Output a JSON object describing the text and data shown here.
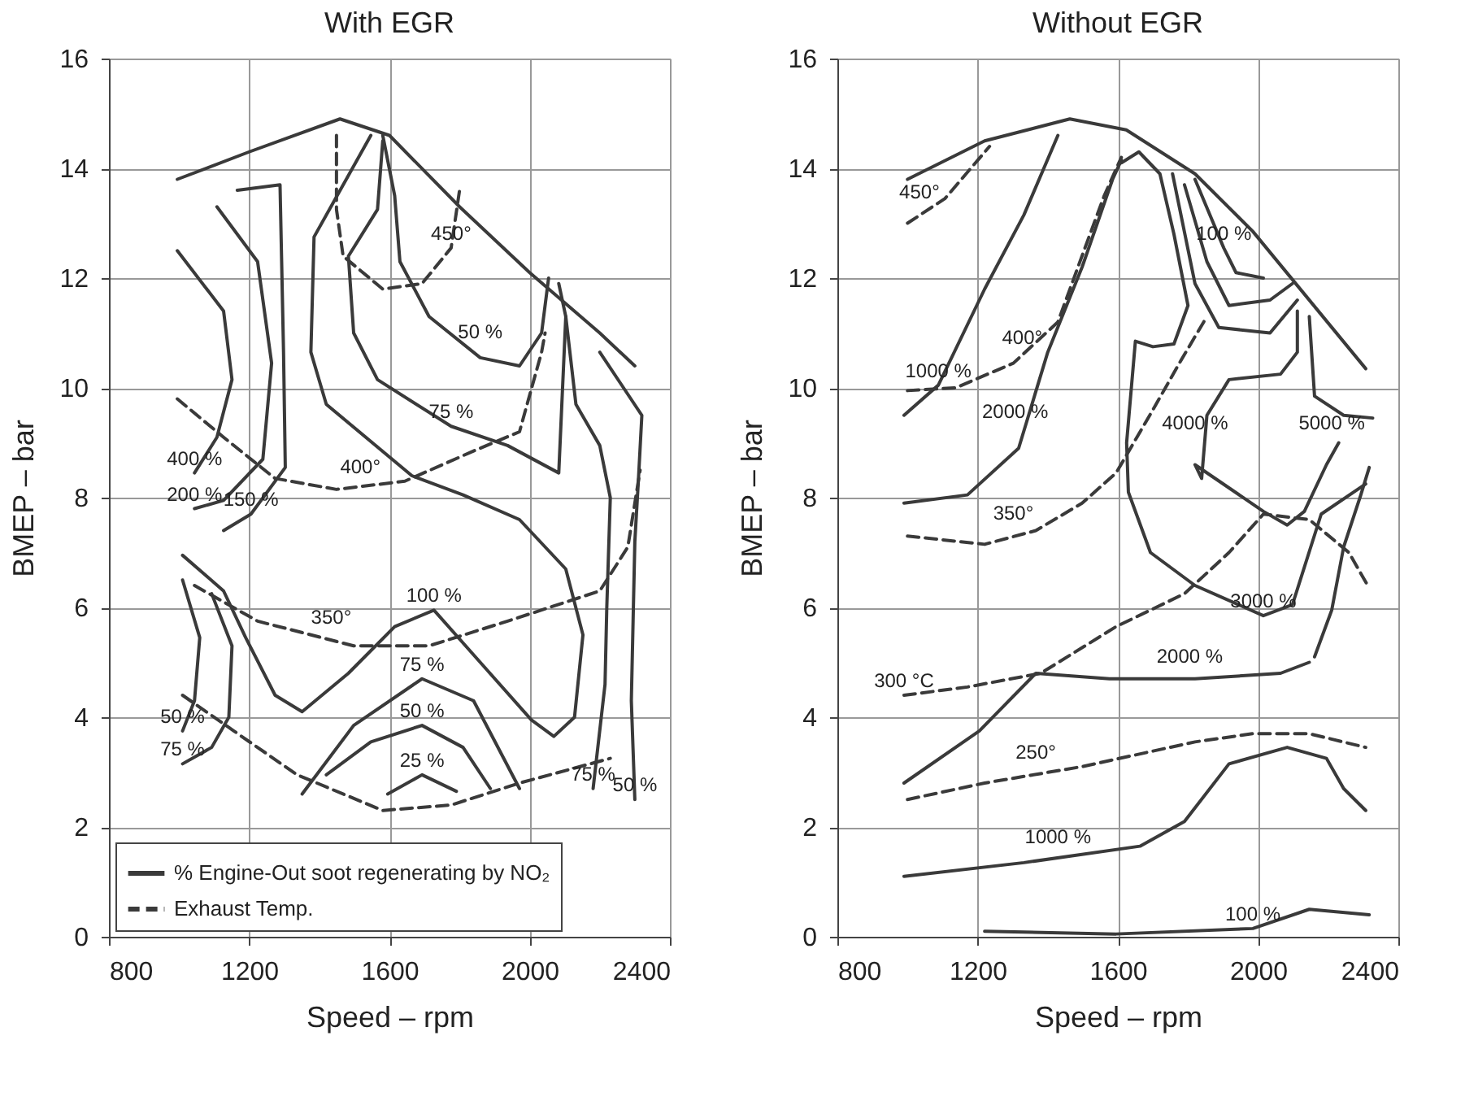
{
  "chart_data": [
    {
      "type": "line",
      "title": "With EGR",
      "xlabel": "Speed  –  rpm",
      "ylabel": "BMEP  –  bar",
      "xlim": [
        800,
        2400
      ],
      "ylim": [
        0,
        16
      ],
      "xticks": [
        800,
        1200,
        1600,
        2000,
        2400
      ],
      "yticks": [
        0,
        2,
        4,
        6,
        8,
        10,
        12,
        14,
        16
      ],
      "grid": true,
      "legend": "bottom left",
      "series": [
        {
          "color": "#3a3a3a",
          "line_style": "solid",
          "x": [
            995,
            1200,
            1459,
            1600,
            1800,
            2000,
            2200,
            2300
          ],
          "values": [
            13.8,
            14.3,
            14.9,
            14.6,
            13.3,
            12.1,
            11.0,
            10.4
          ]
        },
        {
          "name": "% Engine-Out soot regenerating by NO₂",
          "color": "#3a3a3a",
          "line_style": "solid",
          "x": [
            1547,
            1385,
            1376,
            1420,
            1664,
            1810,
            1971,
            2103,
            2152,
            2128,
            2069,
            2005,
            1859,
            1727,
            1615,
            1483,
            1351,
            1274,
            1190,
            1127,
            1010
          ],
          "values": [
            14.6,
            12.75,
            10.65,
            9.7,
            8.4,
            8.05,
            7.6,
            6.7,
            5.5,
            4.0,
            3.65,
            3.95,
            5.0,
            5.95,
            5.65,
            4.8,
            4.1,
            4.4,
            5.45,
            6.3,
            6.95
          ]
        },
        {
          "name": "Exhaust Temp.",
          "color": "#3a3a3a",
          "line_style": "dashed",
          "x": [
            1010,
            1156,
            1337,
            1581,
            1776,
            1971,
            2230
          ],
          "values": [
            4.4,
            3.75,
            2.95,
            2.3,
            2.4,
            2.8,
            3.25
          ]
        },
        {
          "color": "#3a3a3a",
          "line_style": "dashed",
          "x": [
            1044,
            1224,
            1498,
            1713,
            1937,
            2200,
            2280,
            2315
          ],
          "values": [
            6.4,
            5.75,
            5.3,
            5.3,
            5.75,
            6.3,
            7.1,
            8.5
          ]
        },
        {
          "color": "#3a3a3a",
          "line_style": "dashed",
          "x": [
            995,
            1127,
            1274,
            1449,
            1644,
            1840,
            1971,
            2034,
            2044
          ],
          "values": [
            9.8,
            9.1,
            8.35,
            8.15,
            8.3,
            8.85,
            9.2,
            10.65,
            11.0
          ]
        },
        {
          "color": "#3a3a3a",
          "line_style": "dashed",
          "x": [
            1449,
            1449,
            1468,
            1581,
            1693,
            1776,
            1800
          ],
          "values": [
            14.6,
            13.25,
            12.4,
            11.8,
            11.9,
            12.55,
            13.6
          ]
        },
        {
          "color": "#3a3a3a",
          "line_style": "solid",
          "x": [
            1581,
            1615,
            1630,
            1713,
            1859,
            1971,
            2034,
            2054
          ],
          "values": [
            14.6,
            13.5,
            12.3,
            11.3,
            10.55,
            10.4,
            11.0,
            12.0
          ]
        },
        {
          "color": "#3a3a3a",
          "line_style": "solid",
          "x": [
            1581,
            1566,
            1483,
            1498,
            1566,
            1776,
            1937,
            2083,
            2103,
            2083
          ],
          "values": [
            14.5,
            13.25,
            12.4,
            11.0,
            10.15,
            9.3,
            8.95,
            8.45,
            11.3,
            11.9
          ]
        },
        {
          "color": "#3a3a3a",
          "line_style": "solid",
          "x": [
            995,
            1127,
            1151,
            1108,
            1044
          ],
          "values": [
            12.5,
            11.4,
            10.15,
            9.1,
            8.45
          ]
        },
        {
          "color": "#3a3a3a",
          "line_style": "solid",
          "x": [
            1108,
            1224,
            1264,
            1239,
            1127,
            1044
          ],
          "values": [
            13.3,
            12.3,
            10.45,
            8.7,
            7.95,
            7.8
          ]
        },
        {
          "color": "#3a3a3a",
          "line_style": "solid",
          "x": [
            1166,
            1288,
            1298,
            1303,
            1205,
            1127
          ],
          "values": [
            13.6,
            13.7,
            10.65,
            8.55,
            7.7,
            7.4
          ]
        },
        {
          "color": "#3a3a3a",
          "line_style": "solid",
          "x": [
            1010,
            1059,
            1044,
            1010
          ],
          "values": [
            6.5,
            5.45,
            4.3,
            3.75
          ]
        },
        {
          "color": "#3a3a3a",
          "line_style": "solid",
          "x": [
            1093,
            1151,
            1142,
            1093,
            1010
          ],
          "values": [
            6.25,
            5.3,
            4.0,
            3.45,
            3.15
          ]
        },
        {
          "color": "#3a3a3a",
          "line_style": "solid",
          "x": [
            1351,
            1498,
            1693,
            1840,
            1971
          ],
          "values": [
            2.6,
            3.85,
            4.7,
            4.3,
            2.7
          ]
        },
        {
          "color": "#3a3a3a",
          "line_style": "solid",
          "x": [
            1420,
            1547,
            1693,
            1810,
            1888
          ],
          "values": [
            2.95,
            3.55,
            3.85,
            3.45,
            2.7
          ]
        },
        {
          "color": "#3a3a3a",
          "line_style": "solid",
          "x": [
            1595,
            1693,
            1791
          ],
          "values": [
            2.6,
            2.95,
            2.65
          ]
        },
        {
          "color": "#3a3a3a",
          "line_style": "solid",
          "x": [
            2103,
            2132,
            2200,
            2230,
            2220,
            2215,
            2181
          ],
          "values": [
            11.3,
            9.7,
            8.95,
            8.0,
            6.0,
            4.6,
            2.7
          ]
        },
        {
          "color": "#3a3a3a",
          "line_style": "solid",
          "x": [
            2200,
            2320,
            2310,
            2300,
            2290,
            2300
          ],
          "values": [
            10.65,
            9.5,
            8.3,
            7.2,
            4.3,
            2.5
          ]
        }
      ],
      "annotations": [
        {
          "text": "450°",
          "x": 1776,
          "y": 12.55
        },
        {
          "text": "50 %",
          "x": 1859,
          "y": 10.75
        },
        {
          "text": "75 %",
          "x": 1776,
          "y": 9.3
        },
        {
          "text": "400 %",
          "x": 1044,
          "y": 8.45
        },
        {
          "text": "200 %",
          "x": 1044,
          "y": 7.8
        },
        {
          "text": "400°",
          "x": 1517,
          "y": 8.3
        },
        {
          "text": "150 %",
          "x": 1205,
          "y": 7.7
        },
        {
          "text": "100 %",
          "x": 1727,
          "y": 5.95
        },
        {
          "text": "350°",
          "x": 1434,
          "y": 5.55
        },
        {
          "text": "75 %",
          "x": 1693,
          "y": 4.7
        },
        {
          "text": "50 %",
          "x": 1693,
          "y": 3.85
        },
        {
          "text": "25 %",
          "x": 1693,
          "y": 2.95
        },
        {
          "text": "50 %",
          "x": 1010,
          "y": 3.75
        },
        {
          "text": "75 %",
          "x": 1010,
          "y": 3.15
        },
        {
          "text": "75 %",
          "x": 2181,
          "y": 2.7
        },
        {
          "text": "50 %",
          "x": 2300,
          "y": 2.5
        }
      ]
    },
    {
      "type": "line",
      "title": "Without EGR",
      "xlabel": "Speed  –  rpm",
      "ylabel": "BMEP  –  bar",
      "xlim": [
        800,
        2400
      ],
      "ylim": [
        0,
        16
      ],
      "xticks": [
        800,
        1200,
        1600,
        2000,
        2400
      ],
      "yticks": [
        0,
        2,
        4,
        6,
        8,
        10,
        12,
        14,
        16
      ],
      "grid": true,
      "series": [
        {
          "color": "#3a3a3a",
          "line_style": "solid",
          "x": [
            1000,
            1220,
            1463,
            1624,
            1820,
            1985,
            2307
          ],
          "values": [
            13.8,
            14.5,
            14.9,
            14.7,
            13.9,
            12.85,
            10.35
          ]
        },
        {
          "color": "#3a3a3a",
          "line_style": "solid",
          "x": [
            1820,
            1902,
            1937,
            2015
          ],
          "values": [
            13.8,
            12.55,
            12.1,
            12.0
          ]
        },
        {
          "color": "#3a3a3a",
          "line_style": "solid",
          "x": [
            1220,
            1595,
            1985,
            2146,
            2317
          ],
          "values": [
            0.1,
            0.05,
            0.15,
            0.5,
            0.4
          ]
        },
        {
          "color": "#3a3a3a",
          "line_style": "solid",
          "x": [
            990,
            1088,
            1220,
            1332,
            1429
          ],
          "values": [
            9.5,
            10.05,
            11.8,
            13.15,
            14.6
          ]
        },
        {
          "color": "#3a3a3a",
          "line_style": "dashed",
          "x": [
            1000,
            1107,
            1234
          ],
          "values": [
            13.0,
            13.45,
            14.4
          ]
        },
        {
          "color": "#3a3a3a",
          "line_style": "dashed",
          "x": [
            1000,
            1137,
            1302,
            1429,
            1512,
            1561,
            1610
          ],
          "values": [
            9.95,
            10.0,
            10.45,
            11.2,
            12.65,
            13.5,
            14.2
          ]
        },
        {
          "color": "#3a3a3a",
          "line_style": "solid",
          "x": [
            990,
            1171,
            1317,
            1400,
            1498,
            1585,
            1610
          ],
          "values": [
            7.9,
            8.05,
            8.9,
            10.65,
            12.2,
            13.8,
            14.15
          ]
        },
        {
          "color": "#3a3a3a",
          "line_style": "dashed",
          "x": [
            1000,
            1220,
            1366,
            1498,
            1595,
            1700,
            1780,
            1854
          ],
          "values": [
            7.3,
            7.15,
            7.4,
            7.9,
            8.45,
            9.6,
            10.5,
            11.3
          ]
        },
        {
          "color": "#3a3a3a",
          "line_style": "solid",
          "x": [
            1790,
            1854,
            1917,
            2034,
            2098
          ],
          "values": [
            13.7,
            12.3,
            11.5,
            11.6,
            11.9
          ]
        },
        {
          "color": "#3a3a3a",
          "line_style": "solid",
          "x": [
            1756,
            1820,
            1888,
            2034,
            2112
          ],
          "values": [
            13.9,
            11.9,
            11.1,
            11.0,
            11.6
          ]
        },
        {
          "color": "#3a3a3a",
          "line_style": "solid",
          "x": [
            1610,
            1660,
            1720,
            1760,
            1800,
            1760,
            1700,
            1650,
            1625,
            1630,
            1693,
            1820,
            2015,
            2098,
            2180,
            2307
          ],
          "values": [
            14.1,
            14.3,
            13.9,
            12.8,
            11.5,
            10.8,
            10.75,
            10.85,
            9.0,
            8.1,
            7.0,
            6.4,
            5.85,
            6.05,
            7.7,
            8.25
          ]
        },
        {
          "color": "#3a3a3a",
          "line_style": "solid",
          "x": [
            2112,
            2112,
            2064,
            1917,
            1854,
            1839,
            1820,
            2015,
            2083,
            2132,
            2195,
            2230
          ],
          "values": [
            11.4,
            10.65,
            10.25,
            10.15,
            9.5,
            8.35,
            8.6,
            7.75,
            7.5,
            7.75,
            8.6,
            9.0
          ]
        },
        {
          "color": "#3a3a3a",
          "line_style": "solid",
          "x": [
            2146,
            2161,
            2244,
            2327
          ],
          "values": [
            11.3,
            9.85,
            9.5,
            9.45
          ]
        },
        {
          "color": "#3a3a3a",
          "line_style": "solid",
          "x": [
            2161,
            2210,
            2244,
            2293,
            2317
          ],
          "values": [
            5.1,
            5.95,
            7.1,
            8.05,
            8.55
          ]
        },
        {
          "color": "#3a3a3a",
          "line_style": "dashed",
          "x": [
            990,
            1171,
            1380,
            1595,
            1790,
            1917,
            2015,
            2146,
            2259,
            2317
          ],
          "values": [
            4.4,
            4.55,
            4.8,
            5.65,
            6.25,
            7.0,
            7.7,
            7.6,
            7.0,
            6.35
          ]
        },
        {
          "color": "#3a3a3a",
          "line_style": "solid",
          "x": [
            990,
            1205,
            1366,
            1576,
            1820,
            2064,
            2146
          ],
          "values": [
            2.8,
            3.75,
            4.8,
            4.7,
            4.7,
            4.8,
            5.0
          ]
        },
        {
          "color": "#3a3a3a",
          "line_style": "dashed",
          "x": [
            1000,
            1220,
            1498,
            1820,
            1985,
            2146,
            2307
          ],
          "values": [
            2.5,
            2.8,
            3.1,
            3.55,
            3.7,
            3.7,
            3.45
          ]
        },
        {
          "color": "#3a3a3a",
          "line_style": "solid",
          "x": [
            990,
            1332,
            1663,
            1790,
            1917,
            2083,
            2195,
            2244,
            2307
          ],
          "values": [
            1.1,
            1.35,
            1.65,
            2.1,
            3.15,
            3.45,
            3.25,
            2.7,
            2.3
          ]
        }
      ],
      "annotations": [
        {
          "text": "450°",
          "x": 1034,
          "y": 13.3
        },
        {
          "text": "1000 %",
          "x": 1088,
          "y": 10.05
        },
        {
          "text": "400°",
          "x": 1327,
          "y": 10.65
        },
        {
          "text": "2000 %",
          "x": 1307,
          "y": 9.3
        },
        {
          "text": "4000 %",
          "x": 1820,
          "y": 9.1
        },
        {
          "text": "5000 %",
          "x": 2210,
          "y": 9.1
        },
        {
          "text": "100 %",
          "x": 1902,
          "y": 12.55
        },
        {
          "text": "350°",
          "x": 1302,
          "y": 7.45
        },
        {
          "text": "3000 %",
          "x": 2015,
          "y": 5.85
        },
        {
          "text": "2000 %",
          "x": 1805,
          "y": 4.85
        },
        {
          "text": "250°",
          "x": 1366,
          "y": 3.1
        },
        {
          "text": "1000 %",
          "x": 1429,
          "y": 1.55
        },
        {
          "text": "100 %",
          "x": 1985,
          "y": 0.15
        },
        {
          "text": "300 °C",
          "x": 990,
          "y": 4.4
        }
      ]
    }
  ]
}
